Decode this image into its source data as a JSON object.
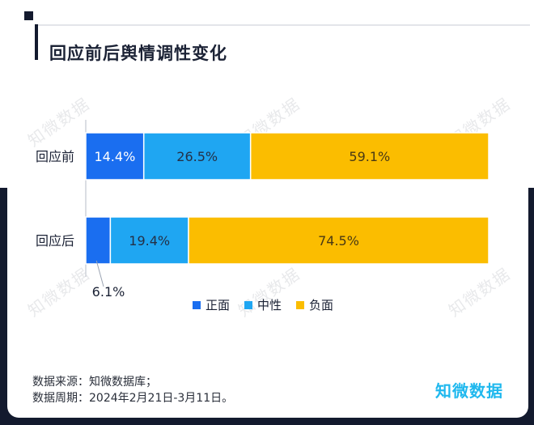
{
  "header": {
    "title": "回应前后舆情调性变化"
  },
  "chart_data": {
    "type": "bar",
    "stacked": true,
    "normalized_percent": true,
    "orientation": "horizontal",
    "title": "回应前后舆情调性变化",
    "categories": [
      "回应前",
      "回应后"
    ],
    "series": [
      {
        "name": "正面",
        "color": "#1a6ef0",
        "values": [
          14.4,
          6.1
        ],
        "labels": [
          "14.4%",
          "6.1%"
        ]
      },
      {
        "name": "中性",
        "color": "#1fa6f2",
        "values": [
          26.5,
          19.4
        ],
        "labels": [
          "26.5%",
          "19.4%"
        ]
      },
      {
        "name": "负面",
        "color": "#fbbd00",
        "values": [
          59.1,
          74.5
        ],
        "labels": [
          "59.1%",
          "74.5%"
        ]
      }
    ],
    "xlim": [
      0,
      100
    ],
    "legend": "bottom-center",
    "grid": false
  },
  "footer": {
    "source": "数据来源：知微数据库；",
    "period": "数据周期：2024年2月21日-3月11日。"
  },
  "brand": "知微数据",
  "watermark": "知微数据"
}
